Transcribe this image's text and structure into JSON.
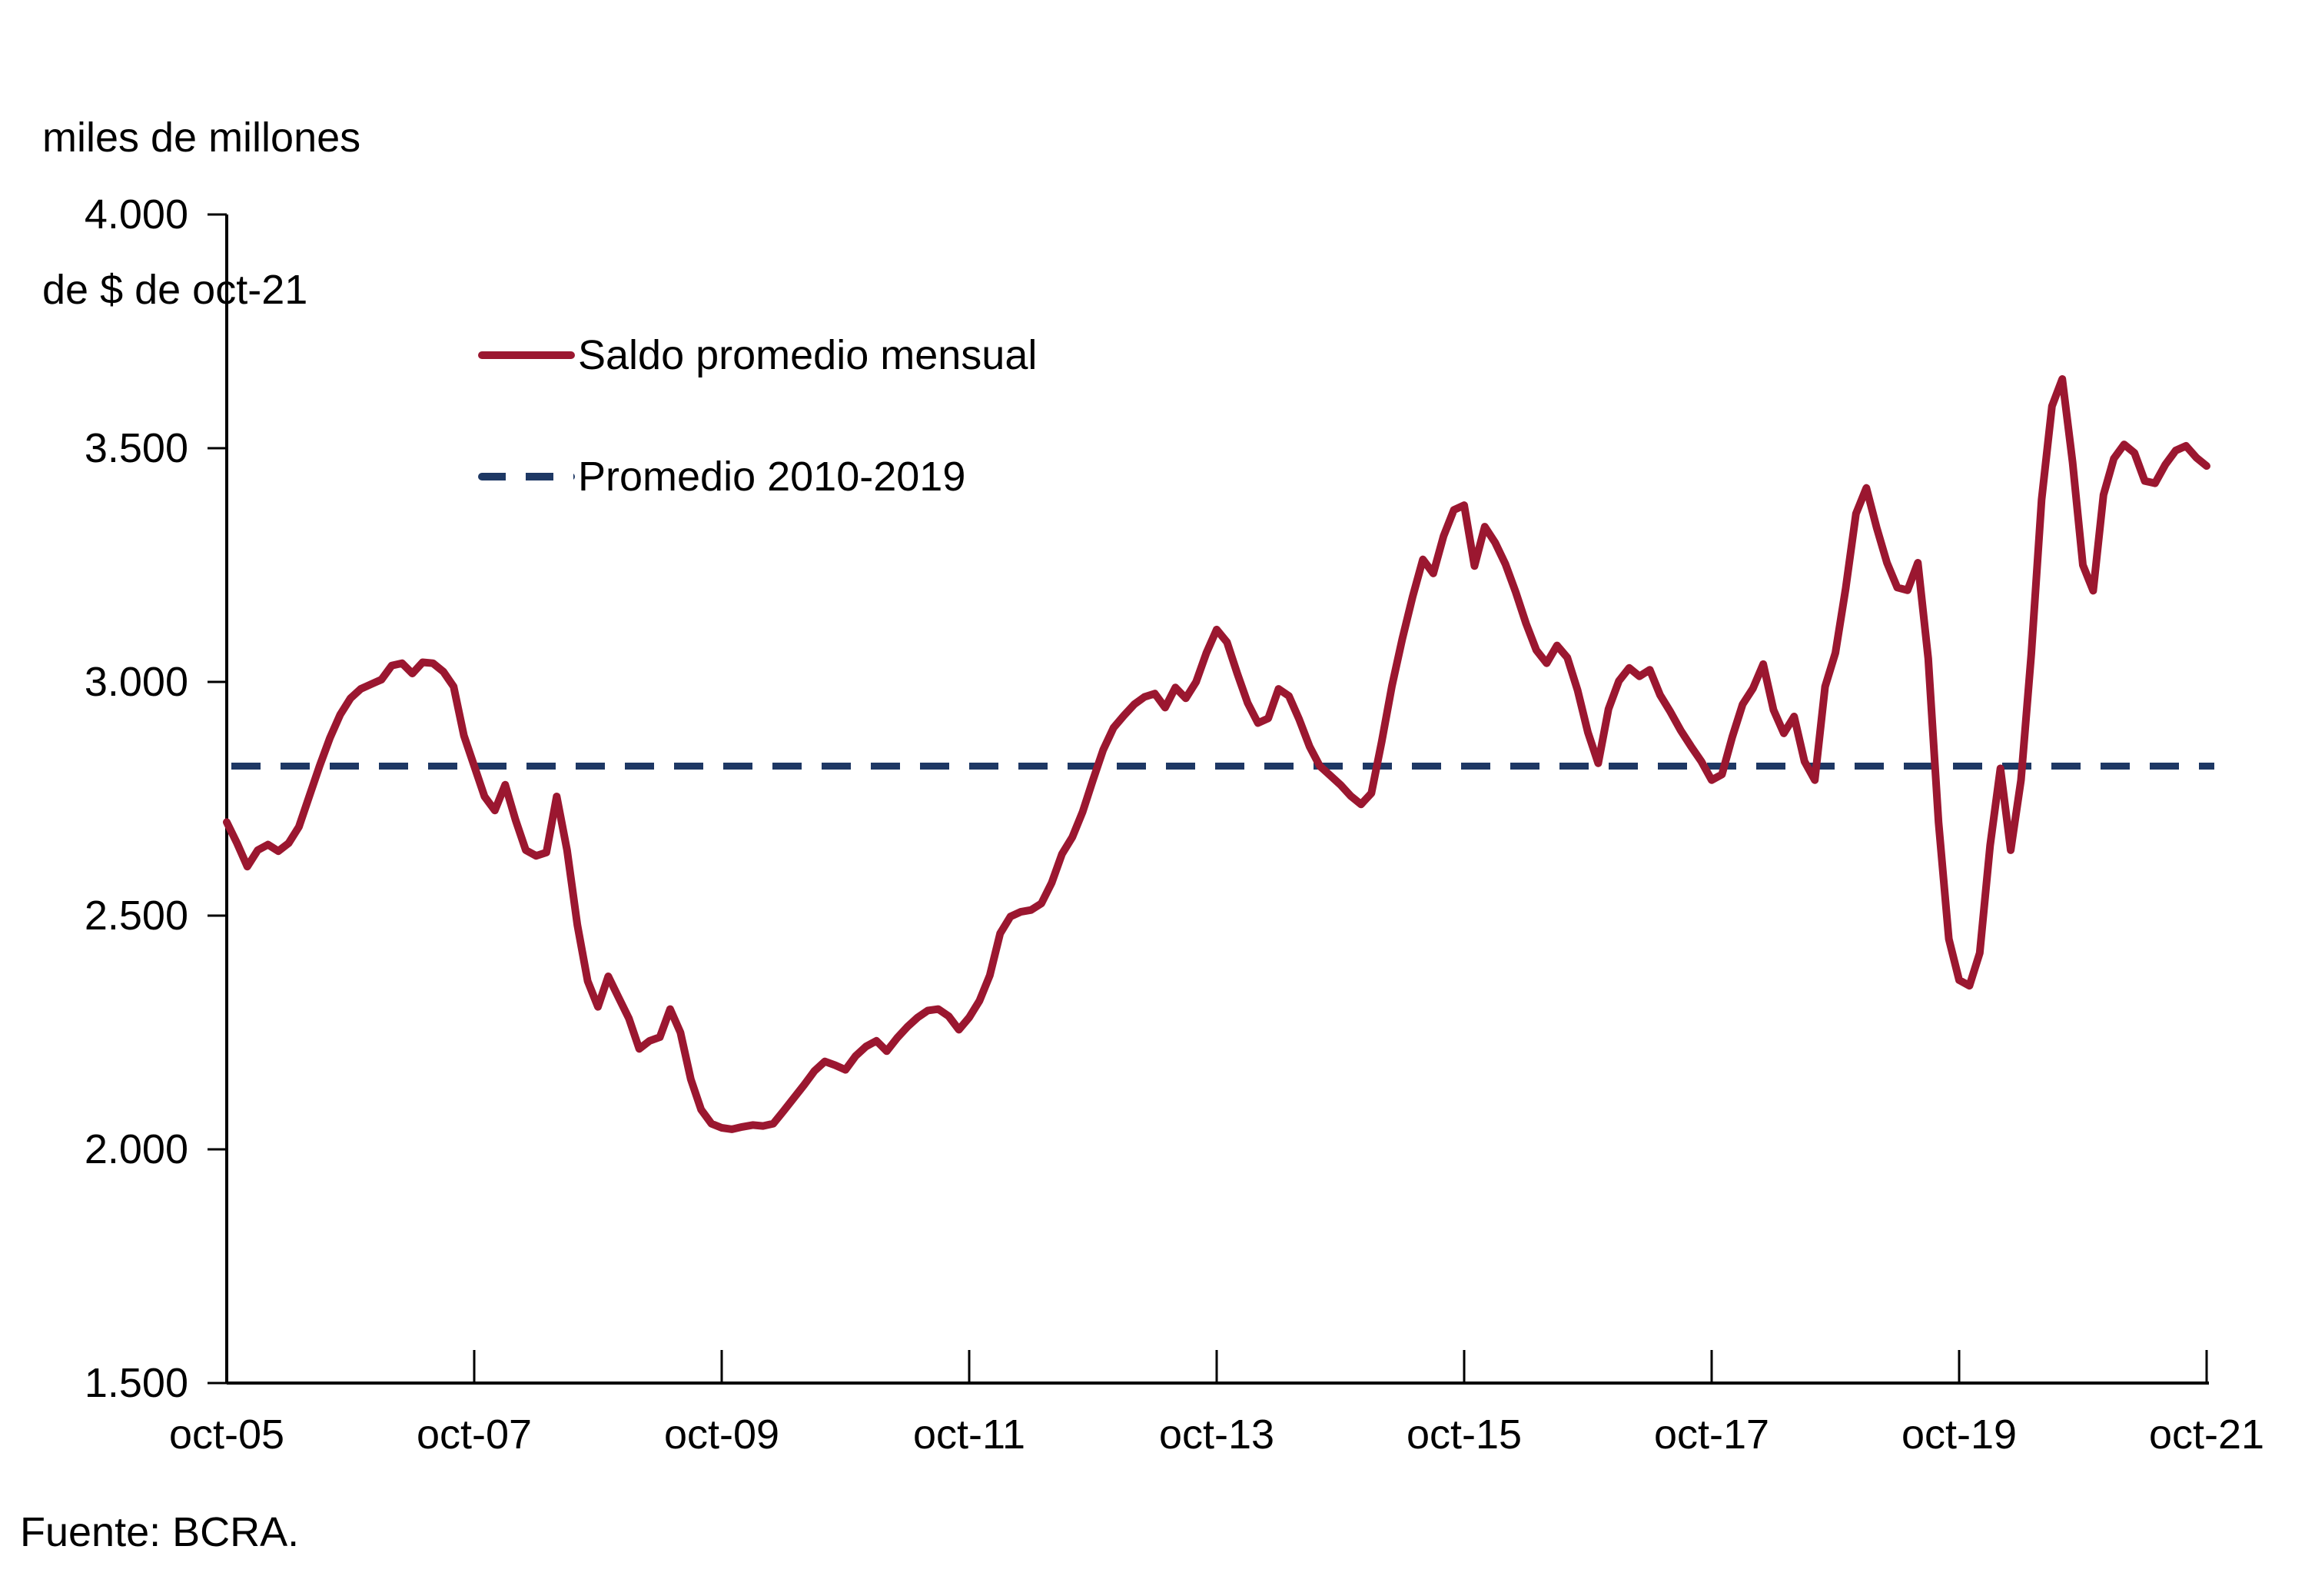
{
  "title": {
    "line1": "miles de millones",
    "line2": "de $ de oct-21"
  },
  "source": "Fuente: BCRA.",
  "legend": {
    "series_label": "Saldo promedio mensual",
    "average_label": "Promedio 2010-2019"
  },
  "colors": {
    "series": "#9B1730",
    "average": "#1E3864",
    "axis": "#000000",
    "background": "#ffffff"
  },
  "chart_data": {
    "type": "line",
    "title": "",
    "ylabel": "miles de millones de $ de oct-21",
    "xlabel": "",
    "grid": false,
    "legend_position": "upper-left-inside",
    "x_unit": "month",
    "x_start": "oct-2005",
    "x_end": "oct-2021",
    "x_tick_labels": [
      "oct-05",
      "oct-07",
      "oct-09",
      "oct-11",
      "oct-13",
      "oct-15",
      "oct-17",
      "oct-19",
      "oct-21"
    ],
    "ylim": [
      1500,
      4000
    ],
    "y_ticks": [
      1500,
      2000,
      2500,
      3000,
      3500,
      4000
    ],
    "y_tick_labels": [
      "1.500",
      "2.000",
      "2.500",
      "3.000",
      "3.500",
      "4.000"
    ],
    "series": [
      {
        "name": "Saldo promedio mensual",
        "style": "solid",
        "color": "#9B1730",
        "monthly_values": [
          2700,
          2655,
          2605,
          2640,
          2652,
          2638,
          2655,
          2690,
          2755,
          2820,
          2880,
          2930,
          2965,
          2985,
          2995,
          3005,
          3035,
          3040,
          3018,
          3042,
          3040,
          3022,
          2990,
          2885,
          2820,
          2755,
          2725,
          2780,
          2705,
          2640,
          2628,
          2635,
          2755,
          2640,
          2480,
          2360,
          2305,
          2370,
          2325,
          2280,
          2215,
          2232,
          2240,
          2300,
          2250,
          2150,
          2085,
          2055,
          2046,
          2043,
          2048,
          2052,
          2050,
          2055,
          2082,
          2110,
          2138,
          2168,
          2188,
          2180,
          2170,
          2200,
          2220,
          2232,
          2210,
          2238,
          2262,
          2282,
          2297,
          2300,
          2285,
          2256,
          2282,
          2318,
          2372,
          2462,
          2498,
          2508,
          2512,
          2526,
          2570,
          2632,
          2668,
          2722,
          2790,
          2855,
          2902,
          2928,
          2952,
          2968,
          2975,
          2945,
          2988,
          2965,
          3000,
          3062,
          3112,
          3085,
          3018,
          2955,
          2912,
          2922,
          2985,
          2970,
          2920,
          2862,
          2820,
          2800,
          2780,
          2756,
          2738,
          2762,
          2872,
          2992,
          3092,
          3182,
          3262,
          3232,
          3312,
          3368,
          3378,
          3248,
          3332,
          3298,
          3252,
          3192,
          3125,
          3068,
          3040,
          3078,
          3052,
          2982,
          2892,
          2826,
          2942,
          3002,
          3030,
          3012,
          3026,
          2972,
          2936,
          2896,
          2862,
          2830,
          2790,
          2802,
          2882,
          2952,
          2986,
          3038,
          2940,
          2890,
          2926,
          2830,
          2790,
          2990,
          3062,
          3200,
          3360,
          3415,
          3330,
          3255,
          3202,
          3196,
          3255,
          3050,
          2700,
          2450,
          2362,
          2350,
          2420,
          2650,
          2815,
          2640,
          2790,
          3060,
          3390,
          3590,
          3648,
          3470,
          3250,
          3195,
          3400,
          3478,
          3508,
          3490,
          3430,
          3425,
          3465,
          3495,
          3505,
          3480,
          3462
        ]
      },
      {
        "name": "Promedio 2010-2019",
        "style": "dashed",
        "color": "#1E3864",
        "value": 2820
      }
    ]
  }
}
